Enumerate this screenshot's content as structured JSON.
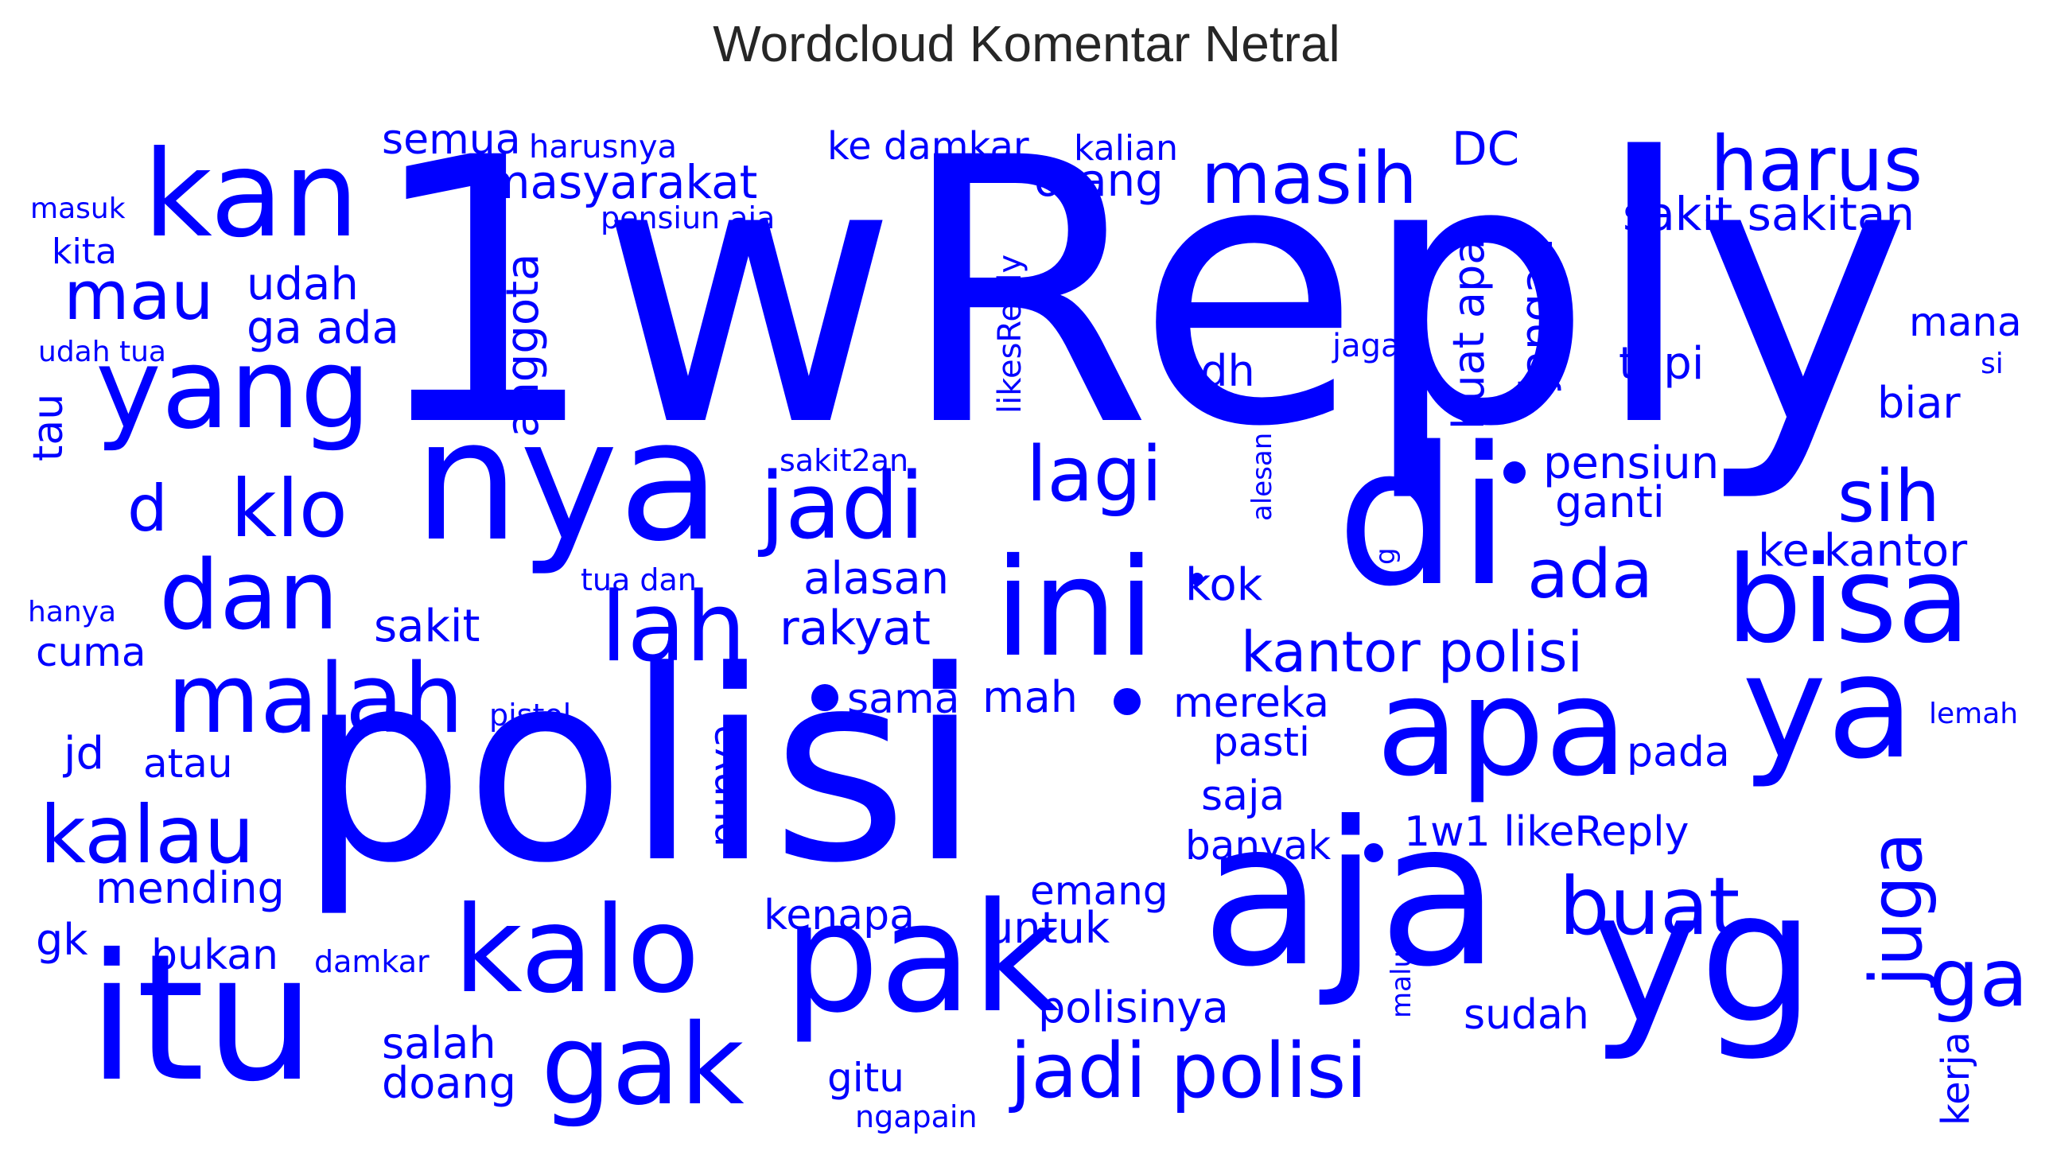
{
  "title": "Wordcloud Komentar Netral",
  "color": "#0000ff",
  "words": [
    "1wReply",
    "polisi",
    "aja",
    "di",
    "nya",
    "yg",
    "itu",
    "pak",
    "ini",
    "bisa",
    "ya",
    "apa",
    "kalo",
    "gak",
    "kan",
    "yang",
    "lah",
    "malah",
    "dan",
    "jadi",
    "jadi polisi",
    "kalau",
    "klo",
    "lagi",
    "harus",
    "buat",
    "masih",
    "mau",
    "sih",
    "ada",
    "kantor polisi",
    "ga",
    "juga",
    "d",
    "sakit sakitan",
    "alasan",
    "rakyat",
    "pensiun",
    "ke kantor",
    "masyarakat",
    "semua",
    "orang",
    "DC",
    "ke damkar",
    "kalian",
    "harusnya",
    "udah",
    "ga ada",
    "anggota",
    "buat apa",
    "jangan",
    "tapi",
    "mana",
    "biar",
    "ganti",
    "udh",
    "jaga",
    "sakit",
    "cuma",
    "kok",
    "mereka",
    "sama",
    "mah",
    "pasti",
    "jd",
    "atau",
    "pada",
    "punya",
    "saja",
    "banyak",
    "1w1 likeReply",
    "mending",
    "kenapa",
    "emang",
    "untuk",
    "gk",
    "bukan",
    "polisinya",
    "sudah",
    "salah",
    "doang",
    "gitu",
    "kerja",
    "ngapain",
    "damkar",
    "malu",
    "lemah",
    "pistol",
    "hanya",
    "tau",
    "tua dan",
    "sakit2an",
    "alesan",
    "likesReply",
    "pensiun aja",
    "kita",
    "masuk",
    "udah tua",
    "si",
    "g"
  ]
}
